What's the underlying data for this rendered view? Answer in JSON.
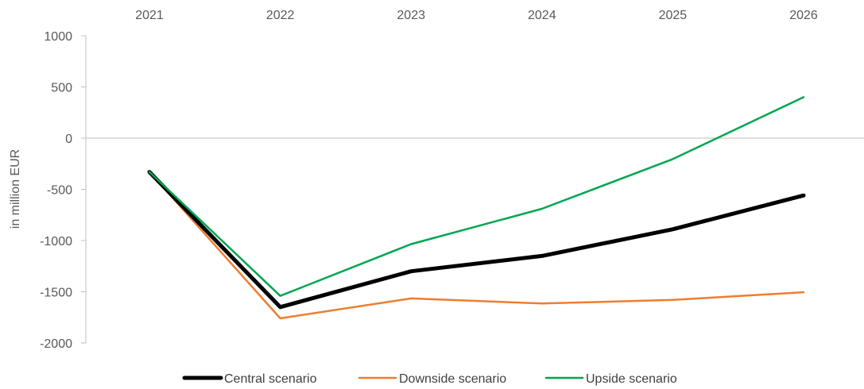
{
  "chart_data": {
    "type": "line",
    "title": "",
    "xlabel": "",
    "ylabel": "in million EUR",
    "x_axis_position": "top",
    "categories": [
      "2021",
      "2022",
      "2023",
      "2024",
      "2025",
      "2026"
    ],
    "ylim": [
      -2000,
      1000
    ],
    "yticks": [
      1000,
      500,
      0,
      -500,
      -1000,
      -1500,
      -2000
    ],
    "grid": false,
    "zero_line": true,
    "legend_position": "bottom",
    "series": [
      {
        "name": "Central scenario",
        "color": "#000000",
        "values": [
          -330,
          -1650,
          -1300,
          -1150,
          -890,
          -560
        ]
      },
      {
        "name": "Downside scenario",
        "color": "#ED7D31",
        "values": [
          -330,
          -1760,
          -1565,
          -1615,
          -1580,
          -1505
        ]
      },
      {
        "name": "Upside scenario",
        "color": "#00A650",
        "values": [
          -330,
          -1540,
          -1035,
          -690,
          -205,
          400
        ]
      }
    ]
  }
}
